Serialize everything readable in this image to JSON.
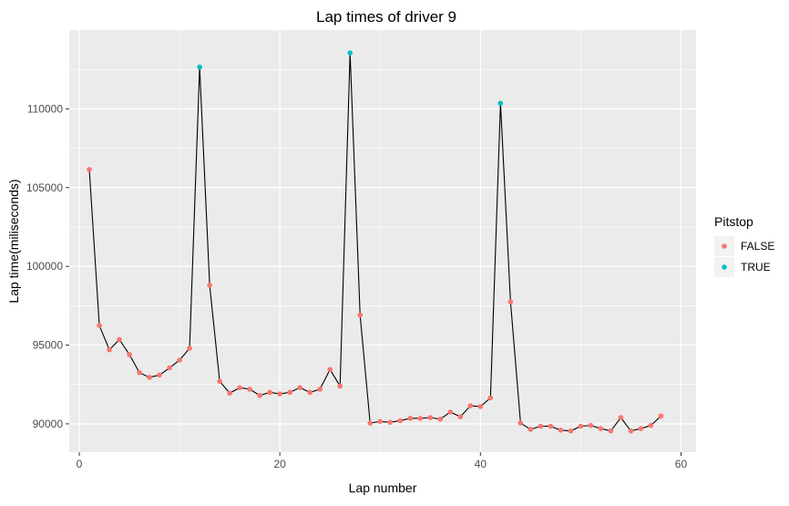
{
  "chart_data": {
    "type": "line",
    "title": "Lap times of driver 9",
    "xlabel": "Lap number",
    "ylabel": "Lap time(miliseconds)",
    "xlim": [
      -1,
      61.5
    ],
    "ylim": [
      88200,
      115000
    ],
    "x_ticks": [
      0,
      20,
      40,
      60
    ],
    "y_ticks": [
      90000,
      95000,
      100000,
      105000,
      110000
    ],
    "grid": true,
    "legend": {
      "title": "Pitstop",
      "position": "right",
      "entries": [
        {
          "label": "FALSE",
          "color": "#F8766D"
        },
        {
          "label": "TRUE",
          "color": "#00BFC4"
        }
      ]
    },
    "colors": {
      "panel": "#EBEBEB",
      "grid": "#FFFFFF",
      "line": "#000000",
      "false_point": "#F8766D",
      "true_point": "#00BFC4"
    },
    "series": [
      {
        "x": [
          1,
          2,
          3,
          4,
          5,
          6,
          7,
          8,
          9,
          10,
          11,
          12,
          13,
          14,
          15,
          16,
          17,
          18,
          19,
          20,
          21,
          22,
          23,
          24,
          25,
          26,
          27,
          28,
          29,
          30,
          31,
          32,
          33,
          34,
          35,
          36,
          37,
          38,
          39,
          40,
          41,
          42,
          43,
          44,
          45,
          46,
          47,
          48,
          49,
          50,
          51,
          52,
          53,
          54,
          55,
          56,
          57,
          58
        ],
        "y": [
          106150,
          96250,
          94700,
          95350,
          94400,
          93250,
          92950,
          93100,
          93550,
          94050,
          94800,
          112650,
          98800,
          92700,
          91950,
          92300,
          92200,
          91800,
          92000,
          91900,
          92000,
          92300,
          92000,
          92200,
          93450,
          92400,
          113550,
          96900,
          90050,
          90150,
          90100,
          90200,
          90350,
          90350,
          90400,
          90300,
          90750,
          90450,
          91150,
          91100,
          91650,
          110350,
          97750,
          90050,
          89650,
          89850,
          89850,
          89600,
          89550,
          89850,
          89900,
          89700,
          89550,
          90400,
          89550,
          89700,
          89900,
          90500
        ],
        "pitstop": [
          false,
          false,
          false,
          false,
          false,
          false,
          false,
          false,
          false,
          false,
          false,
          true,
          false,
          false,
          false,
          false,
          false,
          false,
          false,
          false,
          false,
          false,
          false,
          false,
          false,
          false,
          true,
          false,
          false,
          false,
          false,
          false,
          false,
          false,
          false,
          false,
          false,
          false,
          false,
          false,
          false,
          true,
          false,
          false,
          false,
          false,
          false,
          false,
          false,
          false,
          false,
          false,
          false,
          false,
          false,
          false,
          false,
          false
        ]
      }
    ]
  }
}
